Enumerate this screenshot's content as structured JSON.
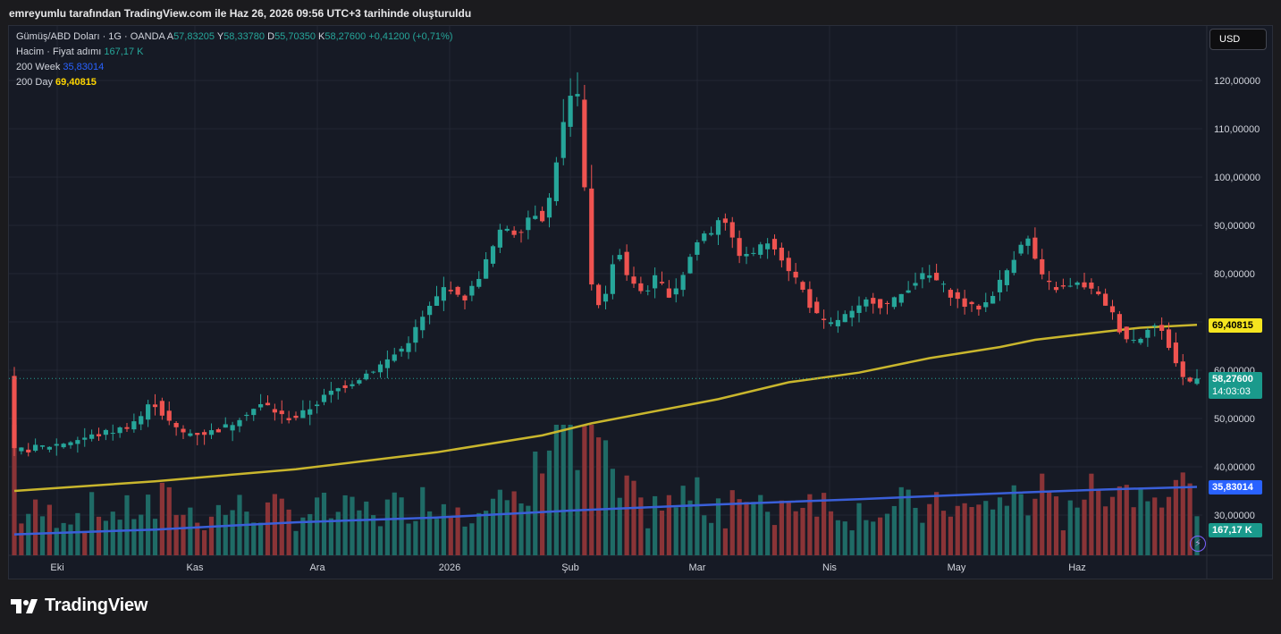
{
  "caption": "emreyumlu tarafından TradingView.com ile Haz 26, 2026 09:56 UTC+3 tarihinde oluşturuldu",
  "legend": {
    "symbol": "Gümüş/ABD Doları · 1G · OANDA",
    "open_key": "A",
    "open": "57,83205",
    "high_key": "Y",
    "high": "58,33780",
    "low_key": "D",
    "low": "55,70350",
    "close_key": "K",
    "close": "58,27600",
    "change": "+0,41200 (+0,71%)",
    "volume_label": "Hacim · Fiyat adımı",
    "volume_value": "167,17 K",
    "ma_week_label": "200 Week",
    "ma_week_value": "35,83014",
    "ma_day_label": "200 Day",
    "ma_day_value": "69,40815"
  },
  "currency_button": "USD",
  "price_tags": {
    "ma_day": "69,40815",
    "last_price": "58,27600",
    "countdown": "14:03:03",
    "ma_week": "35,83014",
    "volume": "167,17 K"
  },
  "colors": {
    "up": "#26a69a",
    "down": "#ef5350",
    "vol_up": "#1f6b66",
    "vol_down": "#8a3437",
    "ma200day": "#c9b62d",
    "ma200week": "#3a5fd9"
  },
  "logo_text": "TradingView",
  "icons": {
    "logo": "tradingview-logo-icon",
    "bolt": "lightning-icon"
  },
  "chart_data": {
    "type": "candlestick",
    "ylim": [
      22,
      125
    ],
    "y_ticks": [
      "120,00000",
      "110,00000",
      "100,00000",
      "90,00000",
      "80,00000",
      "70,00000",
      "60,00000",
      "50,00000",
      "40,00000",
      "30,00000"
    ],
    "y_tick_values": [
      120,
      110,
      100,
      90,
      80,
      70,
      60,
      50,
      40,
      30
    ],
    "x_labels": [
      "Eki",
      "Kas",
      "Ara",
      "2026",
      "Şub",
      "Mar",
      "Nis",
      "May",
      "Haz"
    ],
    "price_path": [
      [
        0,
        43
      ],
      [
        6,
        44.5
      ],
      [
        12,
        46.5
      ],
      [
        16,
        48
      ],
      [
        19,
        51
      ],
      [
        20,
        54
      ],
      [
        22,
        50
      ],
      [
        24,
        47
      ],
      [
        28,
        47
      ],
      [
        31,
        48.5
      ],
      [
        33,
        51
      ],
      [
        36,
        53
      ],
      [
        39,
        50
      ],
      [
        41,
        50.5
      ],
      [
        45,
        55
      ],
      [
        49,
        58
      ],
      [
        53,
        61.5
      ],
      [
        56,
        65
      ],
      [
        59,
        72
      ],
      [
        62,
        78
      ],
      [
        64,
        74
      ],
      [
        66,
        78
      ],
      [
        68,
        84
      ],
      [
        70,
        90
      ],
      [
        72,
        88
      ],
      [
        74,
        93
      ],
      [
        76,
        91
      ],
      [
        77,
        100
      ],
      [
        78,
        107
      ],
      [
        79,
        115
      ],
      [
        80,
        118
      ],
      [
        81,
        115
      ],
      [
        82,
        80
      ],
      [
        84,
        72
      ],
      [
        86,
        86
      ],
      [
        88,
        78
      ],
      [
        90,
        76
      ],
      [
        92,
        80
      ],
      [
        93,
        75
      ],
      [
        95,
        78
      ],
      [
        96,
        82
      ],
      [
        98,
        88
      ],
      [
        100,
        89
      ],
      [
        101,
        94
      ],
      [
        102,
        88
      ],
      [
        104,
        83
      ],
      [
        106,
        85
      ],
      [
        108,
        87
      ],
      [
        110,
        82
      ],
      [
        112,
        78
      ],
      [
        114,
        72
      ],
      [
        116,
        69
      ],
      [
        118,
        71
      ],
      [
        120,
        72
      ],
      [
        122,
        75
      ],
      [
        124,
        73
      ],
      [
        126,
        75
      ],
      [
        128,
        78
      ],
      [
        130,
        80
      ],
      [
        132,
        78
      ],
      [
        134,
        75
      ],
      [
        136,
        73
      ],
      [
        138,
        73
      ],
      [
        140,
        77
      ],
      [
        142,
        82
      ],
      [
        144,
        88
      ],
      [
        145,
        86
      ],
      [
        146,
        80
      ],
      [
        148,
        77
      ],
      [
        150,
        77
      ],
      [
        152,
        78
      ],
      [
        154,
        76
      ],
      [
        156,
        73
      ],
      [
        158,
        67
      ],
      [
        160,
        66
      ],
      [
        161,
        68
      ],
      [
        162,
        70
      ],
      [
        164,
        67
      ],
      [
        165,
        63
      ],
      [
        166,
        60
      ],
      [
        167,
        57
      ],
      [
        168,
        58.3
      ]
    ],
    "ma200_day": [
      [
        0,
        35
      ],
      [
        20,
        37
      ],
      [
        40,
        39.5
      ],
      [
        60,
        43
      ],
      [
        75,
        46.5
      ],
      [
        82,
        49
      ],
      [
        100,
        54
      ],
      [
        110,
        57.5
      ],
      [
        120,
        59.5
      ],
      [
        130,
        62.5
      ],
      [
        140,
        64.8
      ],
      [
        145,
        66.3
      ],
      [
        155,
        68
      ],
      [
        160,
        68.8
      ],
      [
        168,
        69.4
      ]
    ],
    "ma200_week": [
      [
        0,
        26
      ],
      [
        20,
        27
      ],
      [
        40,
        28.5
      ],
      [
        60,
        29.5
      ],
      [
        80,
        31
      ],
      [
        100,
        32.2
      ],
      [
        120,
        33.3
      ],
      [
        140,
        34.5
      ],
      [
        155,
        35.3
      ],
      [
        168,
        35.83
      ]
    ],
    "last_close": 58.276,
    "volume_scale_max": 49,
    "volume_note": "volume bars drawn in lower band; last value 167,17 K"
  }
}
